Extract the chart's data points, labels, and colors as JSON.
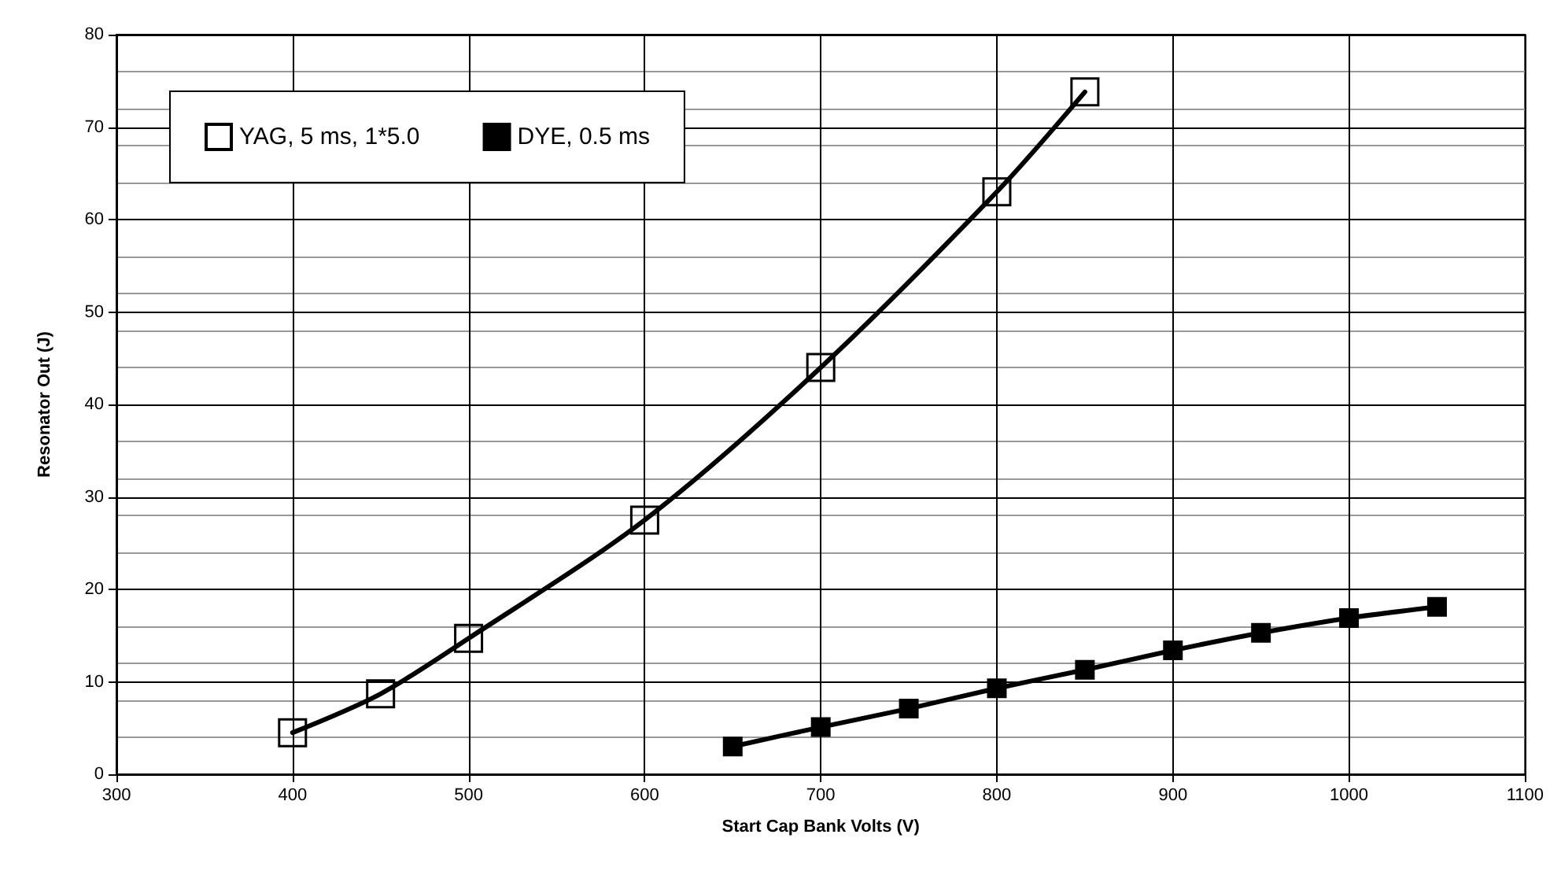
{
  "chart_data": {
    "type": "line",
    "xlabel": "Start Cap Bank Volts (V)",
    "ylabel": "Resonator Out (J)",
    "xlim": [
      300,
      1100
    ],
    "xticks": [
      300,
      400,
      500,
      600,
      700,
      800,
      900,
      1000,
      1100
    ],
    "ylim": [
      0,
      80
    ],
    "yticks": [
      0,
      10,
      20,
      30,
      40,
      50,
      60,
      70,
      80
    ],
    "grid": true,
    "legend": "top left",
    "marker": "square",
    "line_style": "solid",
    "series": [
      {
        "name": "YAG, 5 ms, 1*5.0",
        "color": "#000000",
        "x": [
          400,
          450,
          500,
          600,
          700,
          800,
          850
        ],
        "values": [
          4.5,
          8.7,
          14.7,
          27.5,
          44,
          63,
          73.8
        ]
      },
      {
        "name": "DYE, 0.5 ms",
        "color": "#000000",
        "x": [
          650,
          700,
          750,
          800,
          850,
          900,
          950,
          1000,
          1050
        ],
        "values": [
          3,
          5.1,
          7.1,
          9.3,
          11.3,
          13.4,
          15.3,
          16.9,
          18.1
        ]
      }
    ]
  }
}
